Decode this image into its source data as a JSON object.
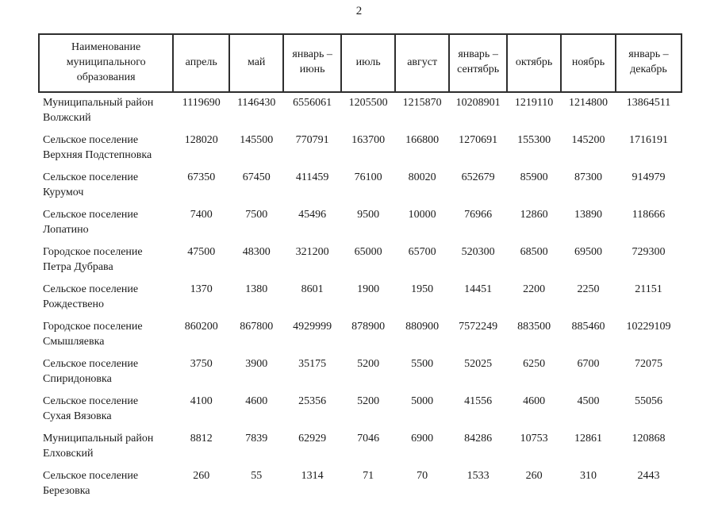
{
  "page": {
    "number": "2"
  },
  "table": {
    "columns": [
      {
        "label": "Наименование муниципального образования"
      },
      {
        "label": "апрель"
      },
      {
        "label": "май"
      },
      {
        "label": "январь – июнь"
      },
      {
        "label": "июль"
      },
      {
        "label": "август"
      },
      {
        "label": "январь – сентябрь"
      },
      {
        "label": "октябрь"
      },
      {
        "label": "ноябрь"
      },
      {
        "label": "январь – декабрь"
      }
    ],
    "rows": [
      {
        "name": "Муниципальный район Волжский",
        "values": [
          "1119690",
          "1146430",
          "6556061",
          "1205500",
          "1215870",
          "10208901",
          "1219110",
          "1214800",
          "13864511"
        ]
      },
      {
        "name": "Сельское поселение Верхняя Подстепновка",
        "values": [
          "128020",
          "145500",
          "770791",
          "163700",
          "166800",
          "1270691",
          "155300",
          "145200",
          "1716191"
        ]
      },
      {
        "name": "Сельское поселение Курумоч",
        "values": [
          "67350",
          "67450",
          "411459",
          "76100",
          "80020",
          "652679",
          "85900",
          "87300",
          "914979"
        ]
      },
      {
        "name": "Сельское поселение Лопатино",
        "values": [
          "7400",
          "7500",
          "45496",
          "9500",
          "10000",
          "76966",
          "12860",
          "13890",
          "118666"
        ]
      },
      {
        "name": "Городское поселение Петра Дубрава",
        "values": [
          "47500",
          "48300",
          "321200",
          "65000",
          "65700",
          "520300",
          "68500",
          "69500",
          "729300"
        ]
      },
      {
        "name": "Сельское поселение Рождествено",
        "values": [
          "1370",
          "1380",
          "8601",
          "1900",
          "1950",
          "14451",
          "2200",
          "2250",
          "21151"
        ]
      },
      {
        "name": "Городское поселение Смышляевка",
        "values": [
          "860200",
          "867800",
          "4929999",
          "878900",
          "880900",
          "7572249",
          "883500",
          "885460",
          "10229109"
        ]
      },
      {
        "name": "Сельское поселение Спиридоновка",
        "values": [
          "3750",
          "3900",
          "35175",
          "5200",
          "5500",
          "52025",
          "6250",
          "6700",
          "72075"
        ]
      },
      {
        "name": "Сельское поселение Сухая Вязовка",
        "values": [
          "4100",
          "4600",
          "25356",
          "5200",
          "5000",
          "41556",
          "4600",
          "4500",
          "55056"
        ]
      },
      {
        "name": "Муниципальный район Елховский",
        "values": [
          "8812",
          "7839",
          "62929",
          "7046",
          "6900",
          "84286",
          "10753",
          "12861",
          "120868"
        ]
      },
      {
        "name": "Сельское поселение Березовка",
        "values": [
          "260",
          "55",
          "1314",
          "71",
          "70",
          "1533",
          "260",
          "310",
          "2443"
        ]
      }
    ]
  }
}
